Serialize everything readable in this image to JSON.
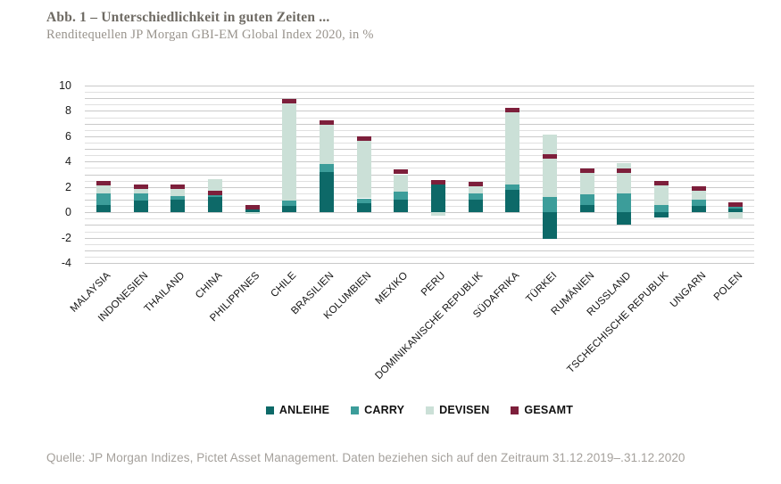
{
  "header": {
    "title": "Abb. 1 – Unterschiedlichkeit in guten Zeiten ...",
    "subtitle": "Renditequellen JP Morgan GBI-EM Global Index 2020, in %"
  },
  "footer": {
    "source": "Quelle: JP Morgan Indizes, Pictet Asset Management. Daten beziehen sich auf den Zeitraum 31.12.2019–.31.12.2020"
  },
  "chart_data": {
    "type": "bar",
    "stacked": true,
    "title": "Abb. 1 – Unterschiedlichkeit in guten Zeiten ...",
    "subtitle": "Renditequellen JP Morgan GBI-EM Global Index 2020, in %",
    "ylabel": "",
    "xlabel": "",
    "ylim": [
      -4,
      10
    ],
    "yticks": [
      10,
      8,
      6,
      4,
      2,
      0,
      -2,
      -4
    ],
    "grid_step": 0.5,
    "grid": true,
    "legend_position": "bottom",
    "categories": [
      "MALAYSIA",
      "INDONESIEN",
      "THAILAND",
      "CHINA",
      "PHILIPPINES",
      "CHILE",
      "BRASILIEN",
      "KOLUMBIEN",
      "MEXIKO",
      "PERU",
      "DOMINIKANISCHE REPUBLIK",
      "SÜDAFRIKA",
      "TÜRKEI",
      "RUMÄNIEN",
      "RUSSLAND",
      "TSCHECHISCHE REPUBLIK",
      "UNGARN",
      "POLEN"
    ],
    "series": [
      {
        "name": "ANLEIHE",
        "role": "stack",
        "color": "#0d6968",
        "values": [
          0.6,
          0.9,
          1.0,
          1.2,
          0.2,
          0.5,
          3.2,
          0.7,
          1.0,
          2.2,
          1.0,
          1.8,
          -2.1,
          0.6,
          -1.0,
          -0.4,
          0.5,
          0.3
        ]
      },
      {
        "name": "CARRY",
        "role": "stack",
        "color": "#3c9d9a",
        "values": [
          0.9,
          0.6,
          0.3,
          0.2,
          0.2,
          0.4,
          0.6,
          0.4,
          0.6,
          0.3,
          0.5,
          0.4,
          1.2,
          0.8,
          1.5,
          0.6,
          0.5,
          0.2
        ]
      },
      {
        "name": "DEVISEN",
        "role": "stack",
        "color": "#cbe0d7",
        "values": [
          0.7,
          0.4,
          0.6,
          1.2,
          -0.15,
          7.9,
          3.2,
          4.7,
          1.4,
          -0.3,
          0.6,
          5.7,
          4.9,
          1.7,
          2.4,
          1.6,
          0.7,
          -0.5
        ]
      },
      {
        "name": "GESAMT",
        "role": "marker",
        "color": "#7d1f3b",
        "values": [
          2.3,
          2.0,
          2.0,
          1.5,
          0.4,
          8.8,
          7.1,
          5.8,
          3.2,
          2.4,
          2.2,
          8.1,
          4.4,
          3.3,
          3.3,
          2.3,
          1.9,
          0.6
        ]
      }
    ]
  }
}
